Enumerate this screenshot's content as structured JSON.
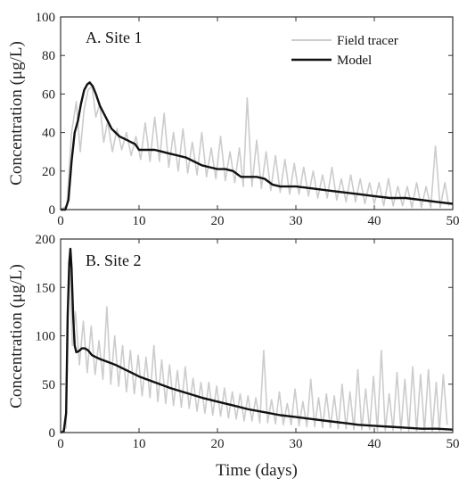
{
  "colors": {
    "field": "#cccccc",
    "model": "#111111",
    "axis": "#333333"
  },
  "x_axis": {
    "label": "Time (days)",
    "ticks": [
      "0",
      "10",
      "20",
      "30",
      "40",
      "50"
    ]
  },
  "legend": {
    "entries": [
      {
        "label": "Field tracer",
        "color": "#cccccc"
      },
      {
        "label": "Model",
        "color": "#111111"
      }
    ]
  },
  "chart_data": [
    {
      "type": "line",
      "title": "A. Site 1",
      "xlabel": "",
      "ylabel": "Concentration (μg/L)",
      "xlim": [
        0,
        50
      ],
      "ylim": [
        0,
        100
      ],
      "xticks": [
        0,
        10,
        20,
        30,
        40,
        50
      ],
      "yticks": [
        0,
        20,
        40,
        60,
        80,
        100
      ],
      "grid": false,
      "legend_position": "top-right",
      "series": [
        {
          "name": "Field tracer",
          "color": "#cccccc",
          "x": [
            0,
            0.8,
            1.4,
            2.0,
            2.5,
            3.0,
            3.5,
            4.0,
            4.5,
            5.0,
            5.5,
            6.0,
            6.6,
            7.2,
            7.8,
            8.4,
            9.0,
            9.6,
            10.2,
            10.8,
            11.4,
            12.0,
            12.6,
            13.2,
            13.8,
            14.4,
            15.0,
            15.6,
            16.2,
            16.8,
            17.4,
            18.0,
            18.6,
            19.2,
            19.8,
            20.4,
            21.0,
            21.6,
            22.2,
            22.8,
            23.3,
            23.8,
            24.4,
            25.0,
            25.6,
            26.2,
            26.8,
            27.4,
            28.0,
            28.6,
            29.2,
            29.8,
            30.4,
            31.0,
            31.6,
            32.2,
            32.8,
            33.4,
            34.0,
            34.6,
            35.2,
            35.8,
            36.4,
            37.0,
            37.6,
            38.2,
            38.8,
            39.4,
            40.0,
            40.6,
            41.2,
            41.8,
            42.4,
            43.0,
            43.6,
            44.2,
            44.8,
            45.4,
            46.0,
            46.6,
            47.2,
            47.8,
            48.4,
            49.0,
            49.5
          ],
          "values": [
            0,
            2,
            40,
            56,
            30,
            52,
            62,
            64,
            48,
            55,
            35,
            46,
            30,
            42,
            31,
            40,
            28,
            38,
            26,
            45,
            25,
            48,
            25,
            50,
            22,
            40,
            20,
            42,
            19,
            35,
            18,
            40,
            17,
            32,
            16,
            38,
            15,
            30,
            14,
            32,
            12,
            58,
            12,
            36,
            11,
            30,
            10,
            28,
            9,
            26,
            8,
            24,
            8,
            22,
            7,
            20,
            6,
            18,
            6,
            22,
            5,
            16,
            4,
            18,
            4,
            16,
            3,
            14,
            3,
            14,
            2,
            16,
            2,
            12,
            2,
            12,
            1,
            14,
            1,
            12,
            1,
            33,
            1,
            14,
            2
          ]
        },
        {
          "name": "Model",
          "color": "#111111",
          "x": [
            0,
            0.6,
            1.0,
            1.4,
            1.8,
            2.2,
            2.6,
            3.0,
            3.4,
            3.7,
            4.1,
            4.5,
            5.0,
            5.5,
            6.0,
            6.5,
            7.0,
            7.5,
            8.0,
            8.5,
            9.0,
            9.5,
            10.0,
            11.0,
            12.0,
            13.0,
            14.0,
            15.0,
            16.0,
            17.0,
            18.0,
            19.0,
            20.0,
            21.0,
            22.0,
            23.0,
            24.0,
            25.0,
            26.0,
            27.0,
            28.0,
            29.0,
            30.0,
            32.0,
            34.0,
            36.0,
            38.0,
            40.0,
            42.0,
            44.0,
            46.0,
            48.0,
            50.0
          ],
          "values": [
            0,
            0,
            5,
            25,
            40,
            46,
            55,
            62,
            65,
            66,
            64,
            60,
            54,
            50,
            46,
            42,
            40,
            38,
            37,
            36,
            35,
            34,
            31,
            31,
            31,
            30,
            29,
            28,
            27,
            25,
            23,
            22,
            21,
            21,
            20,
            17,
            17,
            17,
            16,
            13,
            12,
            12,
            12,
            11,
            10,
            9,
            8,
            7,
            6,
            6,
            5,
            4,
            3
          ]
        }
      ]
    },
    {
      "type": "line",
      "title": "B. Site 2",
      "xlabel": "Time (days)",
      "ylabel": "Concentration (μg/L)",
      "xlim": [
        0,
        50
      ],
      "ylim": [
        0,
        200
      ],
      "xticks": [
        0,
        10,
        20,
        30,
        40,
        50
      ],
      "yticks": [
        0,
        50,
        100,
        150,
        200
      ],
      "grid": false,
      "series": [
        {
          "name": "Field tracer",
          "color": "#cccccc",
          "x": [
            0,
            0.7,
            1.1,
            1.5,
            1.9,
            2.4,
            2.9,
            3.4,
            3.9,
            4.4,
            4.9,
            5.4,
            5.9,
            6.4,
            6.9,
            7.4,
            7.9,
            8.4,
            8.9,
            9.4,
            9.9,
            10.4,
            10.9,
            11.4,
            11.9,
            12.4,
            12.9,
            13.4,
            13.9,
            14.4,
            14.9,
            15.4,
            15.9,
            16.4,
            16.9,
            17.4,
            17.9,
            18.4,
            18.9,
            19.4,
            19.9,
            20.4,
            20.9,
            21.4,
            21.9,
            22.4,
            22.9,
            23.4,
            23.9,
            24.4,
            24.9,
            25.4,
            25.9,
            26.4,
            26.9,
            27.4,
            27.9,
            28.4,
            28.9,
            29.4,
            29.9,
            30.4,
            30.9,
            31.4,
            31.9,
            32.4,
            32.9,
            33.4,
            33.9,
            34.4,
            34.9,
            35.4,
            35.9,
            36.4,
            36.9,
            37.4,
            37.9,
            38.4,
            38.9,
            39.4,
            39.9,
            40.4,
            40.9,
            41.4,
            41.9,
            42.4,
            42.9,
            43.4,
            43.9,
            44.4,
            44.9,
            45.4,
            45.9,
            46.4,
            46.9,
            47.4,
            47.9,
            48.3,
            48.8,
            49.3
          ],
          "values": [
            0,
            5,
            180,
            90,
            125,
            70,
            115,
            62,
            110,
            60,
            95,
            55,
            130,
            50,
            100,
            48,
            90,
            42,
            85,
            40,
            80,
            38,
            78,
            36,
            90,
            32,
            75,
            30,
            70,
            28,
            64,
            26,
            68,
            25,
            56,
            22,
            52,
            20,
            52,
            18,
            48,
            17,
            46,
            15,
            42,
            14,
            40,
            12,
            38,
            12,
            36,
            10,
            85,
            10,
            34,
            9,
            42,
            8,
            30,
            8,
            45,
            7,
            32,
            6,
            55,
            6,
            36,
            5,
            40,
            5,
            38,
            4,
            50,
            4,
            42,
            3,
            65,
            3,
            45,
            3,
            58,
            2,
            85,
            2,
            40,
            2,
            62,
            2,
            55,
            1,
            68,
            1,
            60,
            1,
            65,
            1,
            52,
            1,
            60,
            8
          ]
        },
        {
          "name": "Model",
          "color": "#111111",
          "x": [
            0,
            0.4,
            0.7,
            0.9,
            1.1,
            1.25,
            1.4,
            1.6,
            1.8,
            2.0,
            2.3,
            2.7,
            3.1,
            3.5,
            4.0,
            4.5,
            5.0,
            6.0,
            7.0,
            8.0,
            9.0,
            10.0,
            12.0,
            14.0,
            16.0,
            18.0,
            20.0,
            22.0,
            24.0,
            26.0,
            28.0,
            30.0,
            32.0,
            34.0,
            36.0,
            38.0,
            40.0,
            42.0,
            44.0,
            46.0,
            48.0,
            50.0
          ],
          "values": [
            0,
            1,
            20,
            120,
            175,
            190,
            170,
            120,
            90,
            83,
            84,
            87,
            87,
            85,
            80,
            78,
            76,
            73,
            70,
            66,
            62,
            58,
            52,
            46,
            41,
            36,
            32,
            28,
            24,
            21,
            18,
            16,
            14,
            12,
            10,
            8,
            7,
            6,
            5,
            4,
            4,
            3
          ]
        }
      ]
    }
  ]
}
